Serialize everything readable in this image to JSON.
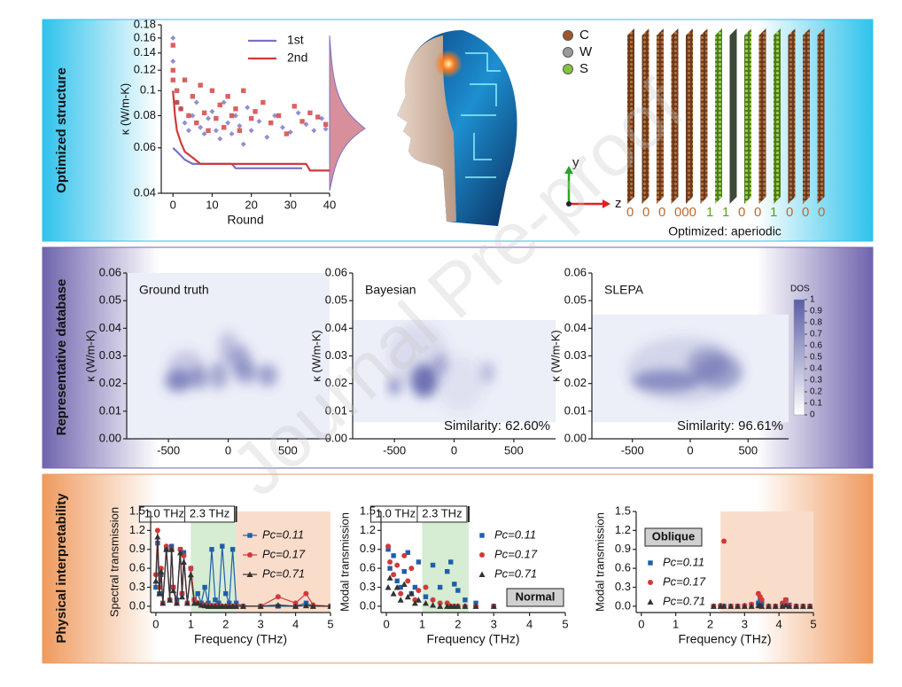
{
  "row_labels": [
    "Optimized structure",
    "Representative database",
    "Physical interpretability"
  ],
  "structure": {
    "legend": [
      {
        "label": "C",
        "color": "#a0552d"
      },
      {
        "label": "W",
        "color": "#9b9b9b"
      },
      {
        "label": "S",
        "color": "#86c23a"
      }
    ],
    "axes": [
      {
        "label": "y",
        "color": "#2aa52a"
      },
      {
        "label": "z",
        "color": "#e02020"
      }
    ],
    "code": [
      "0",
      "0",
      "0",
      "000",
      "1",
      "1",
      "0",
      "0",
      "1",
      "0",
      "0",
      "0"
    ],
    "caption": "Optimized: aperiodic"
  },
  "watermark": "Journal Pre-proof",
  "chart_data": [
    {
      "type": "scatter",
      "xlabel": "Round",
      "ylabel": "κ (W/m-K)",
      "xlim": [
        -3,
        40
      ],
      "xticks": [
        0,
        10,
        20,
        30,
        40
      ],
      "ylim": [
        0.04,
        0.18
      ],
      "ylog": true,
      "yticks": [
        0.04,
        0.06,
        0.08,
        0.1,
        0.12,
        0.14,
        0.16,
        0.18
      ],
      "series": [
        {
          "name": "1st",
          "color": "#7a70c8",
          "x": [
            0,
            1,
            2,
            3,
            5,
            15,
            16,
            33
          ],
          "values": [
            0.06,
            0.058,
            0.056,
            0.054,
            0.052,
            0.052,
            0.05,
            0.05
          ],
          "points_x": [
            0,
            0,
            1,
            2,
            3,
            4,
            5,
            6,
            7,
            8,
            9,
            10,
            11,
            12,
            13,
            14,
            15,
            16,
            17,
            18,
            19,
            20,
            22,
            24,
            26,
            28,
            30,
            32,
            34,
            36,
            38,
            39
          ],
          "points": [
            0.16,
            0.13,
            0.09,
            0.085,
            0.075,
            0.07,
            0.08,
            0.09,
            0.072,
            0.068,
            0.078,
            0.083,
            0.07,
            0.065,
            0.09,
            0.075,
            0.068,
            0.08,
            0.073,
            0.062,
            0.086,
            0.07,
            0.076,
            0.066,
            0.08,
            0.072,
            0.069,
            0.082,
            0.074,
            0.07,
            0.078,
            0.071
          ]
        },
        {
          "name": "2nd",
          "color": "#d23a3a",
          "x": [
            0,
            0.5,
            1,
            2,
            3,
            5,
            7,
            34,
            35,
            40
          ],
          "values": [
            0.1,
            0.08,
            0.07,
            0.063,
            0.058,
            0.055,
            0.052,
            0.052,
            0.049,
            0.049
          ],
          "points_x": [
            0,
            0,
            0,
            1,
            1,
            2,
            3,
            4,
            5,
            6,
            7,
            8,
            9,
            10,
            11,
            12,
            13,
            14,
            15,
            16,
            17,
            18,
            20,
            21,
            23,
            25,
            27,
            29,
            31,
            33,
            35,
            37,
            39
          ],
          "points": [
            0.15,
            0.12,
            0.11,
            0.1,
            0.09,
            0.085,
            0.11,
            0.08,
            0.095,
            0.075,
            0.105,
            0.082,
            0.07,
            0.1,
            0.078,
            0.088,
            0.072,
            0.095,
            0.08,
            0.085,
            0.07,
            0.1,
            0.078,
            0.083,
            0.09,
            0.075,
            0.08,
            0.068,
            0.087,
            0.076,
            0.082,
            0.079,
            0.074
          ]
        }
      ]
    },
    {
      "type": "contour",
      "title": "Ground truth",
      "ylabel": "κ (W/m-K)",
      "xlim": [
        -850,
        850
      ],
      "xticks": [
        -500,
        0,
        500
      ],
      "ylim": [
        0,
        0.06
      ],
      "yticks": [
        {
          "value": 0,
          "label": "0.00"
        },
        0.01,
        0.02,
        0.03,
        0.04,
        0.05,
        0.06
      ],
      "color": "#5a5ea8",
      "floor": [
        0,
        0.06
      ],
      "x": [
        -420,
        -250,
        -80,
        100,
        150,
        330,
        -350,
        0
      ],
      "y": [
        0.021,
        0.022,
        0.023,
        0.029,
        0.024,
        0.023,
        0.026,
        0.033
      ],
      "x_spread": [
        110,
        90,
        80,
        90,
        100,
        80,
        150,
        80
      ],
      "y_spread": [
        0.004,
        0.004,
        0.005,
        0.005,
        0.004,
        0.004,
        0.006,
        0.006
      ],
      "values": [
        0.8,
        0.6,
        0.55,
        0.55,
        0.6,
        0.65,
        0.3,
        0.35
      ]
    },
    {
      "type": "contour",
      "title": "Bayesian",
      "ylabel": "κ (W/m-K)",
      "annotation": "Similarity: 62.60%",
      "xlim": [
        -850,
        850
      ],
      "xticks": [
        -500,
        0,
        500
      ],
      "ylim": [
        0,
        0.06
      ],
      "yticks": [
        {
          "value": 0,
          "label": "0.00"
        },
        0.01,
        0.02,
        0.03,
        0.04,
        0.05,
        0.06
      ],
      "color": "#5a5ea8",
      "floor": [
        0.006,
        0.043
      ],
      "x": [
        -500,
        -250,
        -120,
        280,
        -300,
        50
      ],
      "y": [
        0.019,
        0.021,
        0.027,
        0.024,
        0.03,
        0.02
      ],
      "x_spread": [
        50,
        110,
        60,
        60,
        250,
        200
      ],
      "y_spread": [
        0.003,
        0.006,
        0.004,
        0.004,
        0.012,
        0.01
      ],
      "values": [
        0.8,
        1,
        0.5,
        0.4,
        0.15,
        0.1
      ]
    },
    {
      "type": "contour",
      "title": "SLEPA",
      "ylabel": "κ (W/m-K)",
      "annotation": "Similarity: 96.61%",
      "xlim": [
        -850,
        850
      ],
      "xticks": [
        -500,
        0,
        500
      ],
      "ylim": [
        0,
        0.06
      ],
      "yticks": [
        {
          "value": 0,
          "label": "0.00"
        },
        0.01,
        0.02,
        0.03,
        0.04,
        0.05,
        0.06
      ],
      "color": "#5a5ea8",
      "floor": [
        0.006,
        0.045
      ],
      "x": [
        -200,
        150,
        250,
        -50
      ],
      "y": [
        0.021,
        0.027,
        0.024,
        0.025
      ],
      "x_spread": [
        300,
        180,
        200,
        500
      ],
      "y_spread": [
        0.004,
        0.006,
        0.006,
        0.012
      ],
      "values": [
        0.7,
        0.5,
        0.5,
        0.2
      ],
      "colorbar": {
        "label": "DOS",
        "ticks": [
          0,
          0.1,
          0.2,
          0.3,
          0.4,
          0.5,
          0.6,
          0.7,
          0.8,
          0.9,
          1
        ]
      }
    },
    {
      "type": "line",
      "connect": true,
      "xlabel": "Frequency (THz)",
      "ylabel": "Spectral transmission",
      "xlim": [
        -0.15,
        5
      ],
      "xticks": [
        0,
        1,
        2,
        3,
        4,
        5
      ],
      "ylim": [
        -0.1,
        1.5
      ],
      "yticks": [
        {
          "value": 0,
          "label": "0.0"
        },
        0.3,
        0.6,
        0.9,
        1.2,
        1.5
      ],
      "bands": [
        {
          "from": 1.0,
          "to": 2.3,
          "color": "#d6ecd3",
          "label": "1.0 THz"
        },
        {
          "from": 2.3,
          "to": 5,
          "color": "#fadccb",
          "label": "2.3 THz"
        }
      ],
      "x": [
        0,
        0.05,
        0.1,
        0.15,
        0.2,
        0.3,
        0.4,
        0.45,
        0.5,
        0.6,
        0.7,
        0.75,
        0.8,
        0.9,
        1.0,
        1.1,
        1.2,
        1.3,
        1.4,
        1.5,
        1.6,
        1.7,
        1.8,
        1.9,
        2.0,
        2.1,
        2.2,
        2.3,
        2.5,
        3,
        3.5,
        4,
        4.3,
        4.5,
        5
      ],
      "series": [
        {
          "name": "Pc=0.11",
          "color": "#1f5fa8",
          "marker": "square",
          "values": [
            0.3,
            1.0,
            0.2,
            0.5,
            0.05,
            0.9,
            0.1,
            0.95,
            0.3,
            0.1,
            0.9,
            0.2,
            0.85,
            0.05,
            0.6,
            0.1,
            0.2,
            0.05,
            0.3,
            0.05,
            0.9,
            0.1,
            0.05,
            0.95,
            0.2,
            0.05,
            0.9,
            0.05,
            0,
            0,
            0,
            0,
            0.05,
            0,
            0
          ]
        },
        {
          "name": "Pc=0.17",
          "color": "#d13a3a",
          "marker": "circle",
          "values": [
            0.5,
            1.2,
            0.3,
            0.6,
            0.05,
            0.95,
            0.1,
            0.9,
            0.3,
            0.05,
            0.9,
            0.2,
            0.8,
            0.05,
            0.6,
            0.1,
            0.05,
            0.02,
            0.02,
            0.01,
            0.01,
            0.01,
            0,
            0,
            0,
            0,
            0,
            0,
            0,
            0,
            0.15,
            0.05,
            0.2,
            0.02,
            0
          ]
        },
        {
          "name": "Pc=0.71",
          "color": "#333333",
          "marker": "triangle",
          "values": [
            0.4,
            1.1,
            0.2,
            0.55,
            0.05,
            0.9,
            0.1,
            0.9,
            0.25,
            0.05,
            0.85,
            0.15,
            0.7,
            0.05,
            0.5,
            0.05,
            0.05,
            0.02,
            0.01,
            0,
            0,
            0,
            0,
            0,
            0,
            0,
            0,
            0,
            0,
            0,
            0.02,
            0,
            0.01,
            0,
            0
          ]
        }
      ]
    },
    {
      "type": "line",
      "connect": false,
      "tag": "Normal",
      "xlabel": "Frequency (THz)",
      "ylabel": "Modal transmission",
      "xlim": [
        -0.15,
        5
      ],
      "xticks": [
        0,
        1,
        2,
        3,
        4,
        5
      ],
      "ylim": [
        -0.1,
        1.5
      ],
      "yticks": [
        {
          "value": 0,
          "label": "0.0"
        },
        0.3,
        0.6,
        0.9,
        1.2,
        1.5
      ],
      "bands": [
        {
          "from": 1.0,
          "to": 2.3,
          "color": "#d6ecd3",
          "label": "1.0 THz"
        },
        {
          "from": 2.3,
          "to": 5,
          "color": "#ffffff",
          "label": "2.3 THz"
        }
      ],
      "x": [
        0.05,
        0.1,
        0.2,
        0.3,
        0.4,
        0.5,
        0.6,
        0.7,
        0.8,
        0.9,
        1.1,
        1.3,
        1.5,
        1.7,
        1.8,
        1.9,
        2.0,
        2.2,
        2.5,
        3.0
      ],
      "series": [
        {
          "name": "Pc=0.11",
          "color": "#1f5fa8",
          "marker": "square",
          "values": [
            0.9,
            0.6,
            0.8,
            0.4,
            0.3,
            0.55,
            0.85,
            0.2,
            0.3,
            0.7,
            0.15,
            0.65,
            0.3,
            0.55,
            0.7,
            0.35,
            0.25,
            0.1,
            0.05,
            0
          ]
        },
        {
          "name": "Pc=0.17",
          "color": "#d13a3a",
          "marker": "circle",
          "values": [
            0.95,
            0.7,
            0.5,
            0.65,
            0.2,
            0.8,
            0.4,
            0.6,
            0.1,
            0.25,
            0.3,
            0.1,
            0.05,
            0.05,
            0,
            0,
            0,
            0,
            0,
            0
          ]
        },
        {
          "name": "Pc=0.71",
          "color": "#333333",
          "marker": "triangle",
          "values": [
            0.3,
            0.45,
            0.2,
            0.3,
            0.1,
            0.35,
            0.15,
            0.2,
            0.05,
            0.1,
            0.05,
            0.02,
            0,
            0,
            0,
            0,
            0,
            0,
            0,
            0
          ]
        }
      ]
    },
    {
      "type": "line",
      "connect": false,
      "tag": "Oblique",
      "xlabel": "Frequency (THz)",
      "ylabel": "Modal transmission",
      "xlim": [
        -0.15,
        5
      ],
      "xticks": [
        0,
        1,
        2,
        3,
        4,
        5
      ],
      "ylim": [
        -0.1,
        1.5
      ],
      "yticks": [
        {
          "value": 0,
          "label": "0.0"
        },
        0.3,
        0.6,
        0.9,
        1.2,
        1.5
      ],
      "bands": [
        {
          "from": 2.3,
          "to": 5,
          "color": "#fadccb"
        }
      ],
      "x": [
        2.1,
        2.3,
        2.4,
        2.6,
        2.8,
        3.0,
        3.2,
        3.4,
        3.45,
        3.5,
        3.7,
        3.9,
        4.1,
        4.2,
        4.3,
        4.5,
        4.7,
        4.9
      ],
      "series": [
        {
          "name": "Pc=0.11",
          "color": "#1f5fa8",
          "marker": "square",
          "values": [
            0,
            0,
            0,
            0,
            0,
            0,
            0.02,
            0.05,
            0.08,
            0.04,
            0,
            0,
            0.02,
            0.1,
            0.02,
            0,
            0,
            0
          ]
        },
        {
          "name": "Pc=0.17",
          "color": "#d13a3a",
          "marker": "circle",
          "values": [
            0,
            0.01,
            1.03,
            0,
            0,
            0.01,
            0.03,
            0.2,
            0.15,
            0.1,
            0,
            0,
            0.05,
            0.1,
            0.01,
            0,
            0,
            0
          ]
        },
        {
          "name": "Pc=0.71",
          "color": "#333333",
          "marker": "triangle",
          "values": [
            0,
            0,
            0,
            0,
            0,
            0,
            0,
            0.01,
            0.01,
            0,
            0,
            0,
            0,
            0.02,
            0,
            0,
            0,
            0
          ]
        }
      ]
    }
  ]
}
